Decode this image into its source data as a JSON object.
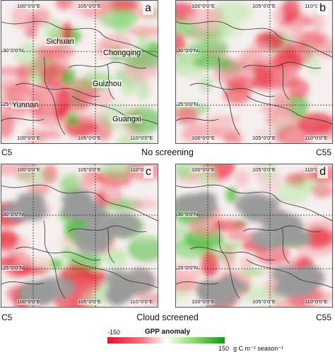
{
  "panels": [
    {
      "id": "a",
      "label": "a",
      "product": "C5",
      "mode": "plain"
    },
    {
      "id": "b",
      "label": "b",
      "product": "C55",
      "mode": "plain"
    },
    {
      "id": "c",
      "label": "c",
      "product": "C5",
      "mode": "cloud"
    },
    {
      "id": "d",
      "label": "d",
      "product": "C55",
      "mode": "cloud"
    }
  ],
  "tick_labels": {
    "lon_100": "100°0'0\"E",
    "lon_105": "105°0'0\"E",
    "lon_110": "110°0'0\"E",
    "lat_30": "30°0'0\"N",
    "lat_25": "25°0'0\"N"
  },
  "provinces": {
    "sichuan": "Sichuan",
    "chongqing": "Chongqing",
    "guizhou": "Guizhou",
    "yunnan": "Yunnan",
    "guangxi": "Guangxi"
  },
  "product_labels": {
    "c5": "C5",
    "c55": "C55"
  },
  "captions": {
    "no_screening": "No screening",
    "cloud_screened": "Cloud screened"
  },
  "colorbar": {
    "title": "GPP anomaly",
    "min": "-150",
    "max": "150",
    "unit": "g C m⁻² season⁻¹",
    "colors": {
      "negative": "#e0102a",
      "neutral": "#ffffff",
      "positive": "#129a12",
      "cloud_mask": "#9a9a9a"
    }
  }
}
